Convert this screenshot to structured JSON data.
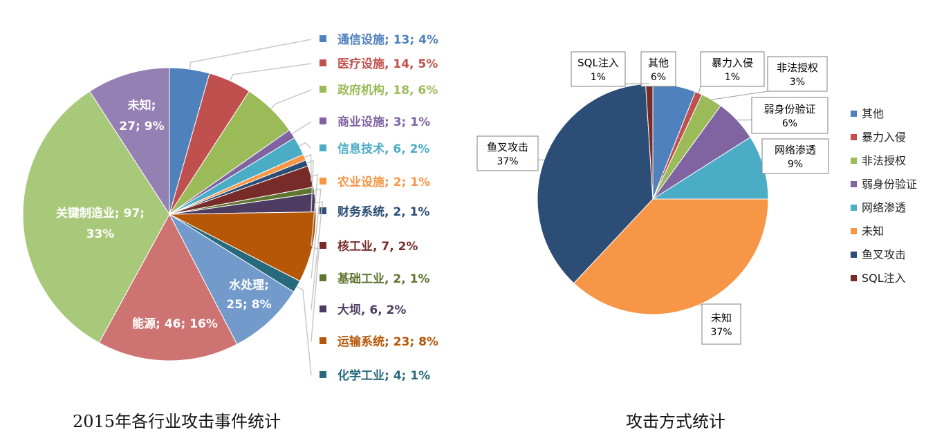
{
  "chart_data": [
    {
      "type": "pie",
      "slices": [
        {
          "name": "通信设施",
          "value": 13,
          "pct": "4%",
          "color": "#4f81bd",
          "label": "通信设施; 13; 4%"
        },
        {
          "name": "医疗设施",
          "value": 14,
          "pct": "5%",
          "color": "#c0504d",
          "label": "医疗设施, 14, 5%"
        },
        {
          "name": "政府机构",
          "value": 18,
          "pct": "6%",
          "color": "#9bbb59",
          "label": "政府机构, 18, 6%"
        },
        {
          "name": "商业设施",
          "value": 3,
          "pct": "1%",
          "color": "#8064a2",
          "label": "商业设施; 3; 1%"
        },
        {
          "name": "信息技术",
          "value": 6,
          "pct": "2%",
          "color": "#4bacc6",
          "label": "信息技术, 6, 2%"
        },
        {
          "name": "农业设施",
          "value": 2,
          "pct": "1%",
          "color": "#f79646",
          "label": "农业设施; 2; 1%"
        },
        {
          "name": "财务系统",
          "value": 2,
          "pct": "1%",
          "color": "#2c4d75",
          "label": "财务系统, 2, 1%"
        },
        {
          "name": "核工业",
          "value": 7,
          "pct": "2%",
          "color": "#772c2a",
          "label": "核工业, 7, 2%"
        },
        {
          "name": "基础工业",
          "value": 2,
          "pct": "1%",
          "color": "#5f7530",
          "label": "基础工业, 2, 1%"
        },
        {
          "name": "大坝",
          "value": 6,
          "pct": "2%",
          "color": "#4d3b62",
          "label": "大坝, 6, 2%"
        },
        {
          "name": "运输系统",
          "value": 23,
          "pct": "8%",
          "color": "#b65708",
          "label": "运输系统; 23; 8%"
        },
        {
          "name": "化学工业",
          "value": 4,
          "pct": "1%",
          "color": "#276a7c",
          "label": "化学工业; 4; 1%"
        },
        {
          "name": "水处理",
          "value": 25,
          "pct": "8%",
          "color": "#729aca",
          "label": "水处理;",
          "label2": "25; 8%"
        },
        {
          "name": "能源",
          "value": 46,
          "pct": "16%",
          "color": "#cd7371",
          "label": "能源; 46; 16%"
        },
        {
          "name": "关键制造业",
          "value": 97,
          "pct": "33%",
          "color": "#a9c97a",
          "label": "关键制造业; 97;",
          "label2": "33%"
        },
        {
          "name": "未知",
          "value": 27,
          "pct": "9%",
          "color": "#9580b3",
          "label": "未知;",
          "label2": "27; 9%"
        }
      ]
    },
    {
      "type": "pie",
      "slices": [
        {
          "name": "其他",
          "value": 6,
          "pct": "6%",
          "color": "#4f81bd"
        },
        {
          "name": "暴力入侵",
          "value": 1,
          "pct": "1%",
          "color": "#c0504d"
        },
        {
          "name": "非法授权",
          "value": 3,
          "pct": "3%",
          "color": "#9bbb59"
        },
        {
          "name": "弱身份验证",
          "value": 6,
          "pct": "6%",
          "color": "#8064a2"
        },
        {
          "name": "网络渗透",
          "value": 9,
          "pct": "9%",
          "color": "#4bacc6"
        },
        {
          "name": "未知",
          "value": 37,
          "pct": "37%",
          "color": "#f79646"
        },
        {
          "name": "鱼叉攻击",
          "value": 37,
          "pct": "37%",
          "color": "#2c4d75"
        },
        {
          "name": "SQL注入",
          "value": 1,
          "pct": "1%",
          "color": "#772c2a"
        }
      ],
      "legend": [
        "其他",
        "暴力入侵",
        "非法授权",
        "弱身份验证",
        "网络渗透",
        "未知",
        "鱼叉攻击",
        "SQL注入"
      ],
      "legend_position": "right"
    }
  ],
  "captions": {
    "left": "2015年各行业攻击事件统计",
    "right": "攻击方式统计"
  }
}
